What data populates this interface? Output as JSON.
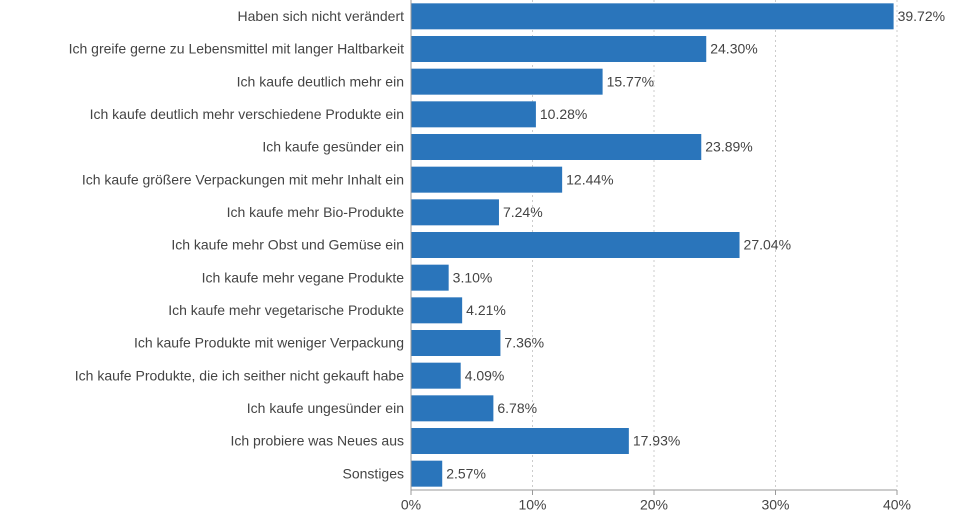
{
  "chart_data": {
    "type": "barh",
    "categories": [
      "Haben sich nicht verändert",
      "Ich greife gerne zu Lebensmittel mit langer Haltbarkeit",
      "Ich kaufe deutlich mehr ein",
      "Ich kaufe deutlich mehr verschiedene Produkte ein",
      "Ich kaufe gesünder ein",
      "Ich kaufe größere Verpackungen mit mehr Inhalt ein",
      "Ich kaufe mehr Bio-Produkte",
      "Ich kaufe mehr Obst und Gemüse ein",
      "Ich kaufe mehr vegane Produkte",
      "Ich kaufe mehr vegetarische Produkte",
      "Ich kaufe Produkte mit weniger Verpackung",
      "Ich kaufe Produkte, die ich seither nicht gekauft habe",
      "Ich kaufe ungesünder ein",
      "Ich probiere was Neues aus",
      "Sonstiges"
    ],
    "values": [
      39.72,
      24.3,
      15.77,
      10.28,
      23.89,
      12.44,
      7.24,
      27.04,
      3.1,
      4.21,
      7.36,
      4.09,
      6.78,
      17.93,
      2.57
    ],
    "value_labels": [
      "39.72%",
      "24.30%",
      "15.77%",
      "10.28%",
      "23.89%",
      "12.44%",
      "7.24%",
      "27.04%",
      "3.10%",
      "4.21%",
      "7.36%",
      "4.09%",
      "6.78%",
      "17.93%",
      "2.57%"
    ],
    "color": "#2a75bb",
    "xlim": [
      0,
      40
    ],
    "xticks": [
      {
        "value": 0,
        "label": "0%"
      },
      {
        "value": 10,
        "label": "10%"
      },
      {
        "value": 20,
        "label": "20%"
      },
      {
        "value": 30,
        "label": "30%"
      },
      {
        "value": 40,
        "label": "40%"
      }
    ],
    "grid": true
  }
}
